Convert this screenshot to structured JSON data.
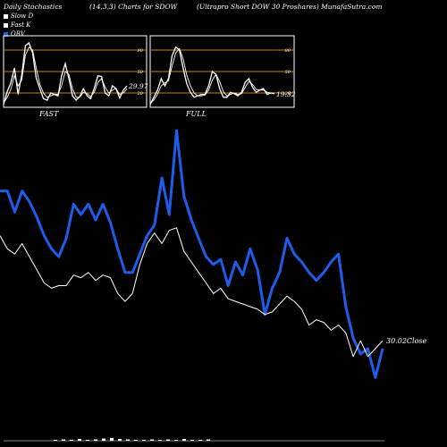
{
  "header": {
    "left": "Daily Stochastics",
    "params": "(14,3,3) Charts for SDOW",
    "title": "(Ultrapro  Short DOW 30  Proshares) MunafaSutra.com"
  },
  "legend": [
    {
      "label": "Slow  D",
      "color": "#ffffff"
    },
    {
      "label": "Fast K",
      "color": "#ffffff"
    },
    {
      "label": "OBV",
      "color": "#1f5ce8"
    }
  ],
  "colors": {
    "obv": "#1f5ce8",
    "close": "#ffffff",
    "level_lines": "#c8860a",
    "background": "#000000"
  },
  "panels": {
    "fast": {
      "label": "FAST",
      "value_label": "29.97"
    },
    "full": {
      "label": "FULL",
      "value_label": "19.32"
    }
  },
  "close_label": "30.02Close",
  "chart_data": [
    {
      "type": "line",
      "name": "FAST stochastics",
      "ylim": [
        0,
        100
      ],
      "levels": [
        20,
        50,
        80
      ],
      "level_labels": [
        "20",
        "50",
        "80"
      ],
      "series": [
        {
          "name": "Fast K",
          "values": [
            4,
            22,
            34,
            55,
            18,
            45,
            86,
            90,
            76,
            41,
            26,
            12,
            10,
            20,
            18,
            16,
            44,
            61,
            40,
            16,
            10,
            15,
            26,
            16,
            12,
            27,
            44,
            43,
            20,
            16,
            30,
            26,
            13,
            24,
            30
          ]
        },
        {
          "name": "Slow D",
          "values": [
            6,
            14,
            25,
            44,
            30,
            38,
            73,
            84,
            80,
            55,
            32,
            20,
            14,
            16,
            18,
            18,
            30,
            50,
            46,
            26,
            14,
            14,
            21,
            19,
            15,
            21,
            35,
            40,
            28,
            20,
            24,
            26,
            18,
            20,
            26
          ]
        }
      ]
    },
    {
      "type": "line",
      "name": "FULL stochastics",
      "ylim": [
        0,
        100
      ],
      "levels": [
        20,
        50,
        80
      ],
      "level_labels": [
        "20",
        "50",
        "80"
      ],
      "series": [
        {
          "name": "Fast K",
          "values": [
            4,
            14,
            24,
            40,
            30,
            40,
            72,
            84,
            80,
            55,
            33,
            21,
            14,
            16,
            18,
            18,
            30,
            50,
            46,
            26,
            14,
            14,
            21,
            19,
            16,
            21,
            35,
            40,
            28,
            21,
            24,
            26,
            18,
            20,
            19
          ]
        },
        {
          "name": "Slow D",
          "values": [
            6,
            10,
            18,
            30,
            34,
            37,
            58,
            76,
            82,
            68,
            45,
            30,
            20,
            16,
            16,
            17,
            24,
            38,
            46,
            36,
            22,
            16,
            18,
            20,
            18,
            19,
            28,
            36,
            32,
            25,
            24,
            24,
            21,
            20,
            20
          ]
        }
      ]
    },
    {
      "type": "line",
      "name": "Price and OBV",
      "series": [
        {
          "name": "OBV",
          "values": [
            0.77,
            0.77,
            0.69,
            0.77,
            0.73,
            0.67,
            0.6,
            0.55,
            0.52,
            0.59,
            0.72,
            0.68,
            0.72,
            0.66,
            0.72,
            0.65,
            0.55,
            0.46,
            0.46,
            0.53,
            0.6,
            0.64,
            0.82,
            0.68,
            1.0,
            0.75,
            0.66,
            0.59,
            0.52,
            0.49,
            0.51,
            0.41,
            0.5,
            0.45,
            0.55,
            0.47,
            0.3,
            0.4,
            0.46,
            0.59,
            0.53,
            0.5,
            0.46,
            0.43,
            0.46,
            0.5,
            0.53,
            0.33,
            0.21,
            0.15,
            0.17,
            0.06,
            0.17
          ]
        },
        {
          "name": "Close",
          "values": [
            0.6,
            0.55,
            0.53,
            0.57,
            0.52,
            0.47,
            0.42,
            0.4,
            0.41,
            0.41,
            0.45,
            0.44,
            0.46,
            0.43,
            0.45,
            0.44,
            0.38,
            0.35,
            0.38,
            0.49,
            0.57,
            0.61,
            0.57,
            0.62,
            0.63,
            0.54,
            0.5,
            0.46,
            0.42,
            0.38,
            0.4,
            0.36,
            0.35,
            0.34,
            0.33,
            0.32,
            0.3,
            0.31,
            0.34,
            0.37,
            0.35,
            0.32,
            0.26,
            0.28,
            0.27,
            0.24,
            0.26,
            0.23,
            0.14,
            0.2,
            0.14,
            0.17,
            0.2
          ]
        }
      ]
    }
  ]
}
